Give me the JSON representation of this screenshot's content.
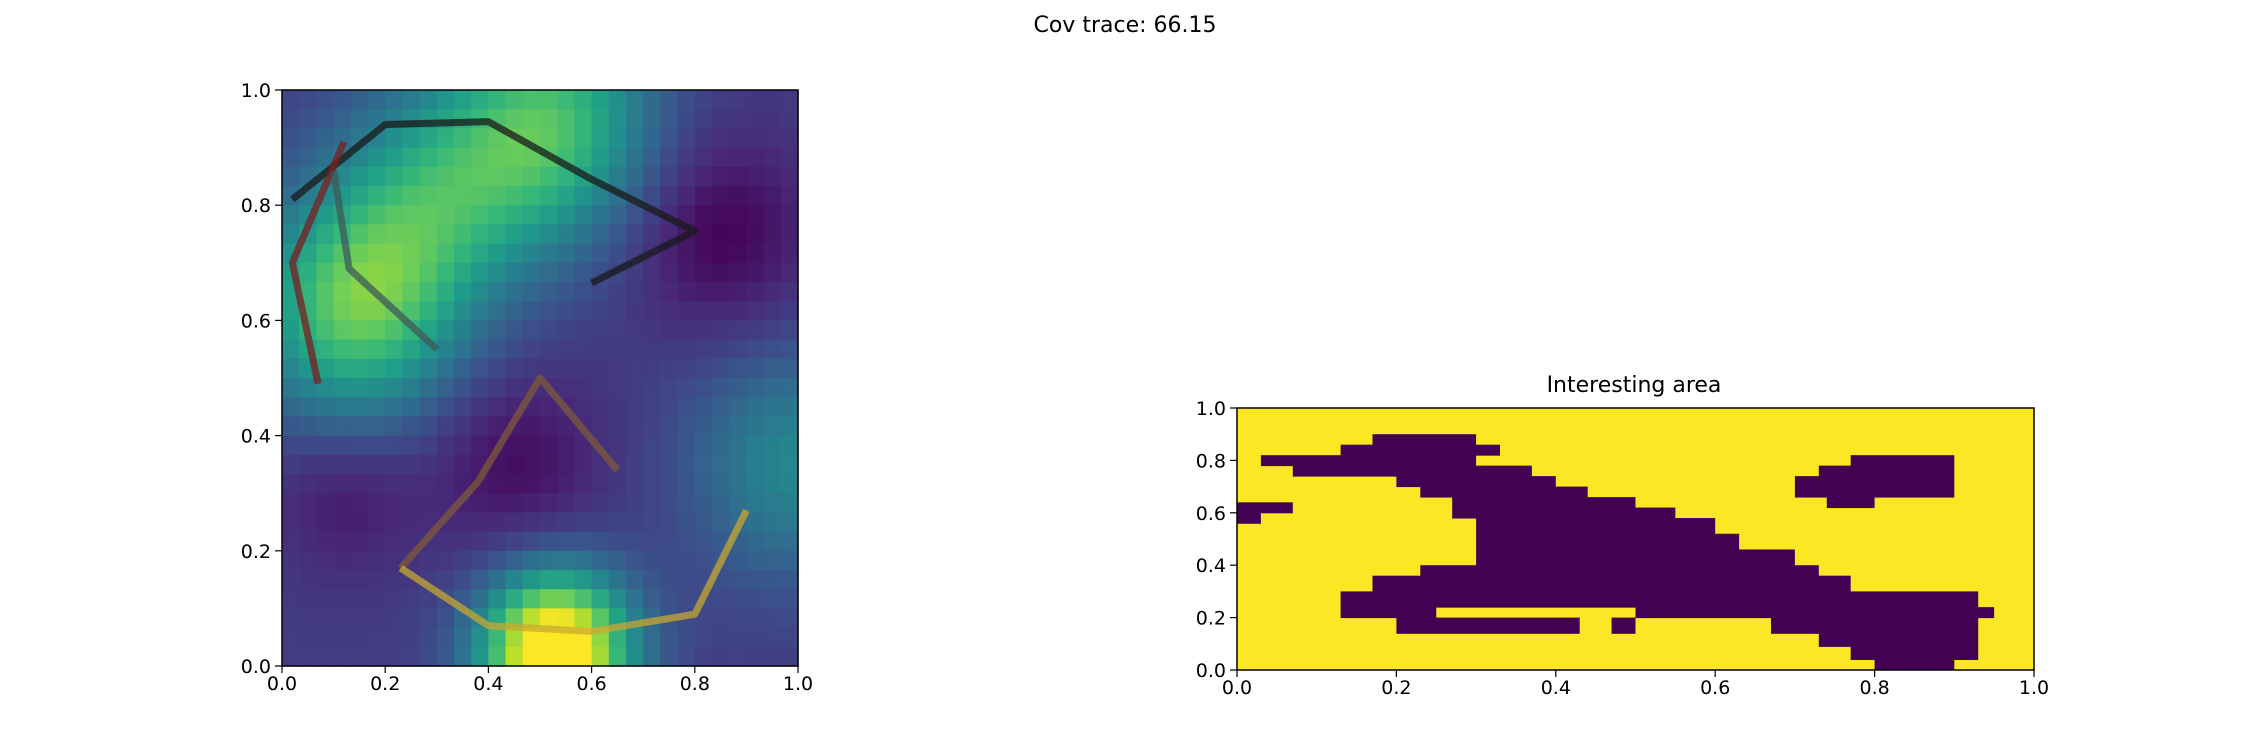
{
  "figure": {
    "suptitle": "Cov trace: 66.15"
  },
  "colors": {
    "viridis_low": "#440154",
    "viridis_high": "#fde725",
    "path_colors": [
      "#1a1a1a",
      "#7a1f1f",
      "#3d5a5a",
      "#7f5a3a",
      "#c8a830"
    ]
  },
  "chart_data": [
    {
      "type": "heatmap",
      "title": "",
      "xlabel": "",
      "ylabel": "",
      "xlim": [
        0.0,
        1.0
      ],
      "ylim": [
        0.0,
        1.0
      ],
      "xticks": [
        "0.0",
        "0.2",
        "0.4",
        "0.6",
        "0.8",
        "1.0"
      ],
      "yticks": [
        "0.0",
        "0.2",
        "0.4",
        "0.6",
        "0.8",
        "1.0"
      ],
      "colormap": "viridis",
      "field_peaks": [
        {
          "x": 0.53,
          "y": 0.02,
          "amplitude": 1.0
        },
        {
          "x": 0.14,
          "y": 0.62,
          "amplitude": 0.55
        },
        {
          "x": 0.52,
          "y": 0.94,
          "amplitude": 0.5
        },
        {
          "x": 0.3,
          "y": 0.81,
          "amplitude": 0.35
        },
        {
          "x": 0.99,
          "y": 0.35,
          "amplitude": 0.28
        }
      ],
      "paths": [
        {
          "color": "#1a1a1a",
          "points": [
            [
              0.02,
              0.81
            ],
            [
              0.2,
              0.94
            ],
            [
              0.4,
              0.945
            ],
            [
              0.6,
              0.845
            ],
            [
              0.8,
              0.755
            ],
            [
              0.6,
              0.665
            ]
          ]
        },
        {
          "color": "#7a1f1f",
          "points": [
            [
              0.07,
              0.49
            ],
            [
              0.02,
              0.7
            ],
            [
              0.12,
              0.91
            ]
          ]
        },
        {
          "color": "#3d5a5a",
          "points": [
            [
              0.1,
              0.86
            ],
            [
              0.13,
              0.69
            ],
            [
              0.3,
              0.55
            ]
          ]
        },
        {
          "color": "#7f5a3a",
          "points": [
            [
              0.65,
              0.34
            ],
            [
              0.5,
              0.5
            ],
            [
              0.38,
              0.32
            ],
            [
              0.23,
              0.17
            ]
          ]
        },
        {
          "color": "#c8a830",
          "points": [
            [
              0.23,
              0.17
            ],
            [
              0.4,
              0.07
            ],
            [
              0.6,
              0.06
            ],
            [
              0.8,
              0.09
            ],
            [
              0.9,
              0.27
            ]
          ]
        }
      ]
    },
    {
      "type": "heatmap",
      "title": "Interesting area",
      "xlabel": "",
      "ylabel": "",
      "xlim": [
        0.0,
        1.0
      ],
      "ylim": [
        0.0,
        1.0
      ],
      "xticks": [
        "0.0",
        "0.2",
        "0.4",
        "0.6",
        "0.8",
        "1.0"
      ],
      "yticks": [
        "0.0",
        "0.2",
        "0.4",
        "0.6",
        "0.8",
        "1.0"
      ],
      "colormap": "binary viridis",
      "cell_value_yellow": 1,
      "cell_value_purple": 0,
      "purple_row_spans": [
        {
          "y0": 0.0,
          "y1": 0.04,
          "x0": 0.8,
          "x1": 0.9
        },
        {
          "y0": 0.04,
          "y1": 0.09,
          "x0": 0.77,
          "x1": 0.93
        },
        {
          "y0": 0.09,
          "y1": 0.14,
          "x0": 0.73,
          "x1": 0.93
        },
        {
          "y0": 0.14,
          "y1": 0.2,
          "x0": 0.2,
          "x1": 0.43
        },
        {
          "y0": 0.14,
          "y1": 0.2,
          "x0": 0.47,
          "x1": 0.5
        },
        {
          "y0": 0.14,
          "y1": 0.2,
          "x0": 0.67,
          "x1": 0.93
        },
        {
          "y0": 0.2,
          "y1": 0.24,
          "x0": 0.13,
          "x1": 0.25
        },
        {
          "y0": 0.2,
          "y1": 0.24,
          "x0": 0.5,
          "x1": 0.95
        },
        {
          "y0": 0.24,
          "y1": 0.3,
          "x0": 0.13,
          "x1": 0.93
        },
        {
          "y0": 0.3,
          "y1": 0.36,
          "x0": 0.17,
          "x1": 0.77
        },
        {
          "y0": 0.36,
          "y1": 0.4,
          "x0": 0.23,
          "x1": 0.73
        },
        {
          "y0": 0.4,
          "y1": 0.46,
          "x0": 0.3,
          "x1": 0.7
        },
        {
          "y0": 0.46,
          "y1": 0.52,
          "x0": 0.3,
          "x1": 0.63
        },
        {
          "y0": 0.52,
          "y1": 0.58,
          "x0": 0.3,
          "x1": 0.6
        },
        {
          "y0": 0.56,
          "y1": 0.6,
          "x0": 0.0,
          "x1": 0.03
        },
        {
          "y0": 0.58,
          "y1": 0.62,
          "x0": 0.27,
          "x1": 0.55
        },
        {
          "y0": 0.6,
          "y1": 0.64,
          "x0": 0.0,
          "x1": 0.07
        },
        {
          "y0": 0.62,
          "y1": 0.66,
          "x0": 0.27,
          "x1": 0.5
        },
        {
          "y0": 0.62,
          "y1": 0.66,
          "x0": 0.74,
          "x1": 0.8
        },
        {
          "y0": 0.66,
          "y1": 0.7,
          "x0": 0.23,
          "x1": 0.44
        },
        {
          "y0": 0.66,
          "y1": 0.7,
          "x0": 0.7,
          "x1": 0.9
        },
        {
          "y0": 0.7,
          "y1": 0.74,
          "x0": 0.2,
          "x1": 0.4
        },
        {
          "y0": 0.7,
          "y1": 0.74,
          "x0": 0.7,
          "x1": 0.9
        },
        {
          "y0": 0.74,
          "y1": 0.78,
          "x0": 0.07,
          "x1": 0.37
        },
        {
          "y0": 0.74,
          "y1": 0.78,
          "x0": 0.73,
          "x1": 0.9
        },
        {
          "y0": 0.78,
          "y1": 0.82,
          "x0": 0.03,
          "x1": 0.3
        },
        {
          "y0": 0.78,
          "y1": 0.82,
          "x0": 0.77,
          "x1": 0.9
        },
        {
          "y0": 0.82,
          "y1": 0.86,
          "x0": 0.13,
          "x1": 0.33
        },
        {
          "y0": 0.86,
          "y1": 0.9,
          "x0": 0.17,
          "x1": 0.3
        }
      ]
    }
  ]
}
